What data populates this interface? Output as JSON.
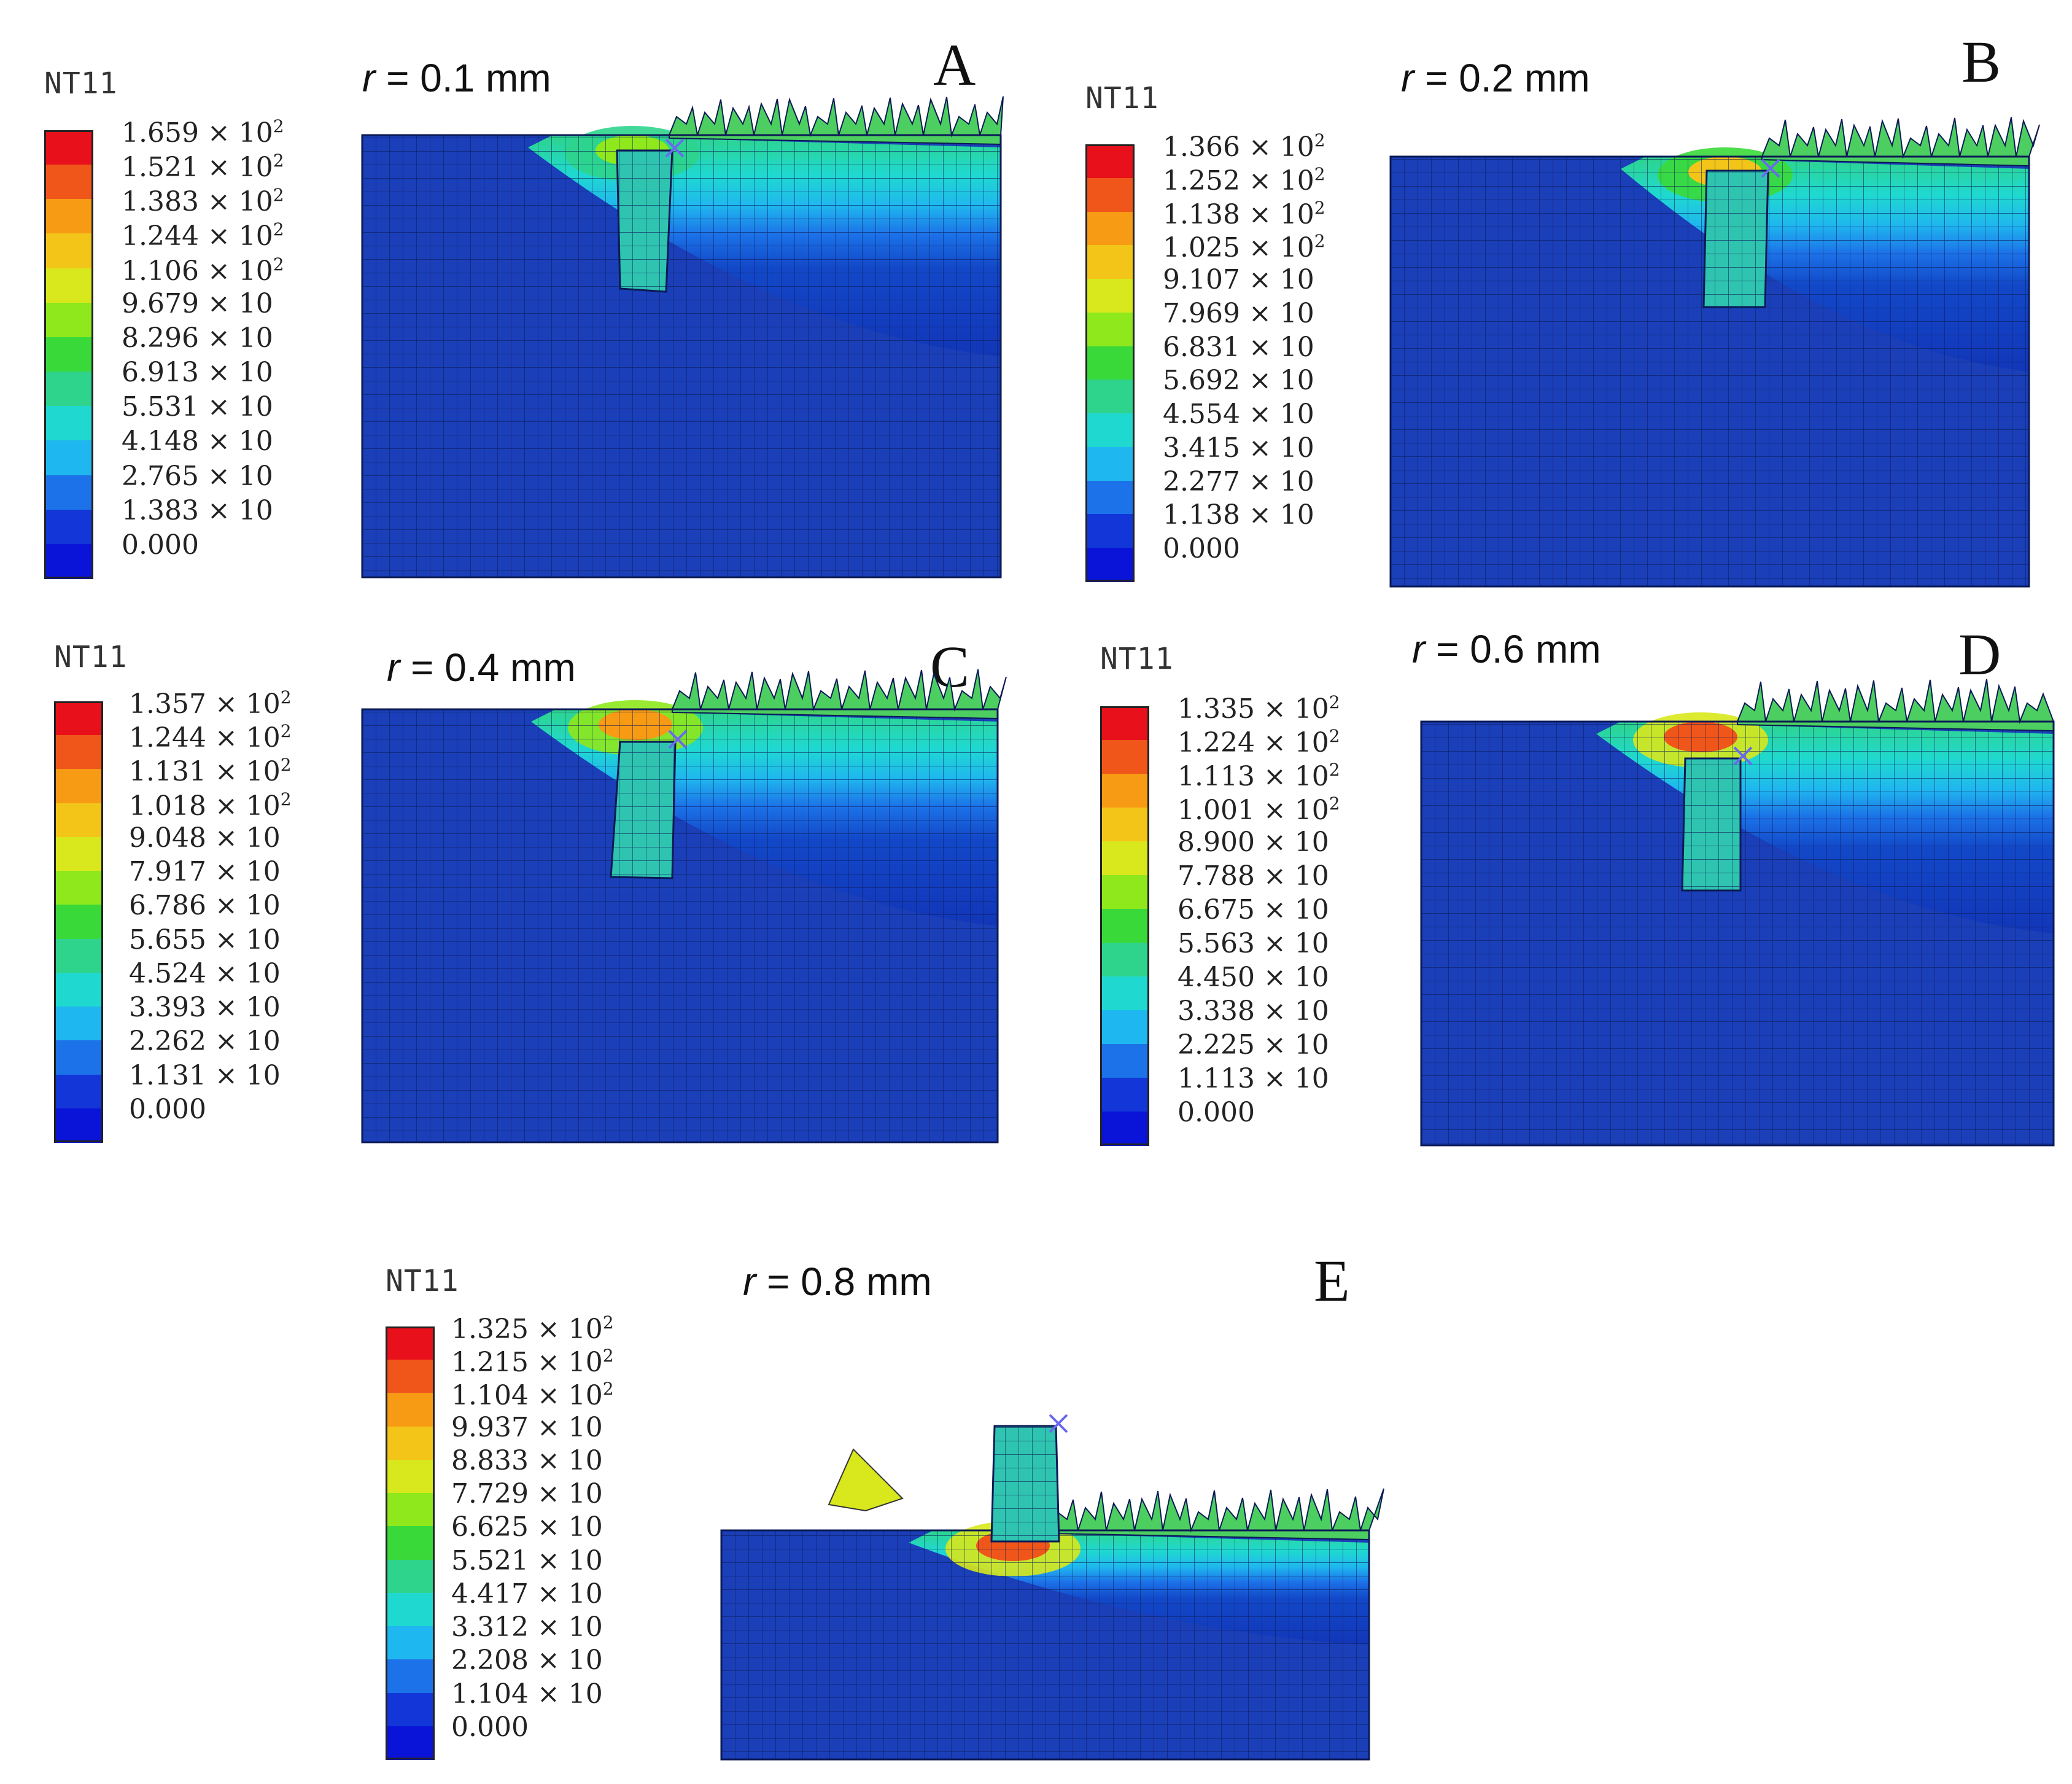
{
  "legend_colors": [
    "#e8101a",
    "#f0561a",
    "#f79a14",
    "#f2c518",
    "#d8e81c",
    "#8ee81c",
    "#3ad93a",
    "#2ed48c",
    "#1fd9d0",
    "#1fb7ef",
    "#1c72e8",
    "#1236d8",
    "#0a14d8"
  ],
  "panels": [
    {
      "letter": "A",
      "r_prefix": "r",
      "r_suffix": " = 0.1 mm",
      "legend_title": "NT11",
      "legend_labels": [
        {
          "m": "1.659 × 10",
          "e": "2"
        },
        {
          "m": "1.521 × 10",
          "e": "2"
        },
        {
          "m": "1.383 × 10",
          "e": "2"
        },
        {
          "m": "1.244 × 10",
          "e": "2"
        },
        {
          "m": "1.106 × 10",
          "e": "2"
        },
        {
          "m": "9.679 × 10",
          "e": ""
        },
        {
          "m": "8.296 × 10",
          "e": ""
        },
        {
          "m": "6.913 × 10",
          "e": ""
        },
        {
          "m": "5.531 × 10",
          "e": ""
        },
        {
          "m": "4.148 × 10",
          "e": ""
        },
        {
          "m": "2.765 × 10",
          "e": ""
        },
        {
          "m": "1.383 × 10",
          "e": ""
        },
        {
          "m": "0.000",
          "e": ""
        }
      ]
    },
    {
      "letter": "B",
      "r_prefix": "r",
      "r_suffix": " = 0.2 mm",
      "legend_title": "NT11",
      "legend_labels": [
        {
          "m": "1.366 × 10",
          "e": "2"
        },
        {
          "m": "1.252 × 10",
          "e": "2"
        },
        {
          "m": "1.138 × 10",
          "e": "2"
        },
        {
          "m": "1.025 × 10",
          "e": "2"
        },
        {
          "m": "9.107 × 10",
          "e": ""
        },
        {
          "m": "7.969 × 10",
          "e": ""
        },
        {
          "m": "6.831 × 10",
          "e": ""
        },
        {
          "m": "5.692 × 10",
          "e": ""
        },
        {
          "m": "4.554 × 10",
          "e": ""
        },
        {
          "m": "3.415 × 10",
          "e": ""
        },
        {
          "m": "2.277 × 10",
          "e": ""
        },
        {
          "m": "1.138 × 10",
          "e": ""
        },
        {
          "m": "0.000",
          "e": ""
        }
      ]
    },
    {
      "letter": "C",
      "r_prefix": "r",
      "r_suffix": " = 0.4 mm",
      "legend_title": "NT11",
      "legend_labels": [
        {
          "m": "1.357 × 10",
          "e": "2"
        },
        {
          "m": "1.244 × 10",
          "e": "2"
        },
        {
          "m": "1.131 × 10",
          "e": "2"
        },
        {
          "m": "1.018 × 10",
          "e": "2"
        },
        {
          "m": "9.048 × 10",
          "e": ""
        },
        {
          "m": "7.917 × 10",
          "e": ""
        },
        {
          "m": "6.786 × 10",
          "e": ""
        },
        {
          "m": "5.655 × 10",
          "e": ""
        },
        {
          "m": "4.524 × 10",
          "e": ""
        },
        {
          "m": "3.393 × 10",
          "e": ""
        },
        {
          "m": "2.262 × 10",
          "e": ""
        },
        {
          "m": "1.131 × 10",
          "e": ""
        },
        {
          "m": "0.000",
          "e": ""
        }
      ]
    },
    {
      "letter": "D",
      "r_prefix": "r",
      "r_suffix": " = 0.6 mm",
      "legend_title": "NT11",
      "legend_labels": [
        {
          "m": "1.335 × 10",
          "e": "2"
        },
        {
          "m": "1.224 × 10",
          "e": "2"
        },
        {
          "m": "1.113 × 10",
          "e": "2"
        },
        {
          "m": "1.001 × 10",
          "e": "2"
        },
        {
          "m": "8.900 × 10",
          "e": ""
        },
        {
          "m": "7.788 × 10",
          "e": ""
        },
        {
          "m": "6.675 × 10",
          "e": ""
        },
        {
          "m": "5.563 × 10",
          "e": ""
        },
        {
          "m": "4.450 × 10",
          "e": ""
        },
        {
          "m": "3.338 × 10",
          "e": ""
        },
        {
          "m": "2.225 × 10",
          "e": ""
        },
        {
          "m": "1.113 × 10",
          "e": ""
        },
        {
          "m": "0.000",
          "e": ""
        }
      ]
    },
    {
      "letter": "E",
      "r_prefix": "r",
      "r_suffix": " = 0.8 mm",
      "legend_title": "NT11",
      "legend_labels": [
        {
          "m": "1.325 × 10",
          "e": "2"
        },
        {
          "m": "1.215 × 10",
          "e": "2"
        },
        {
          "m": "1.104 × 10",
          "e": "2"
        },
        {
          "m": "9.937 × 10",
          "e": ""
        },
        {
          "m": "8.833 × 10",
          "e": ""
        },
        {
          "m": "7.729 × 10",
          "e": ""
        },
        {
          "m": "6.625 × 10",
          "e": ""
        },
        {
          "m": "5.521 × 10",
          "e": ""
        },
        {
          "m": "4.417 × 10",
          "e": ""
        },
        {
          "m": "3.312 × 10",
          "e": ""
        },
        {
          "m": "2.208 × 10",
          "e": ""
        },
        {
          "m": "1.104 × 10",
          "e": ""
        },
        {
          "m": "0.000",
          "e": ""
        }
      ]
    }
  ]
}
